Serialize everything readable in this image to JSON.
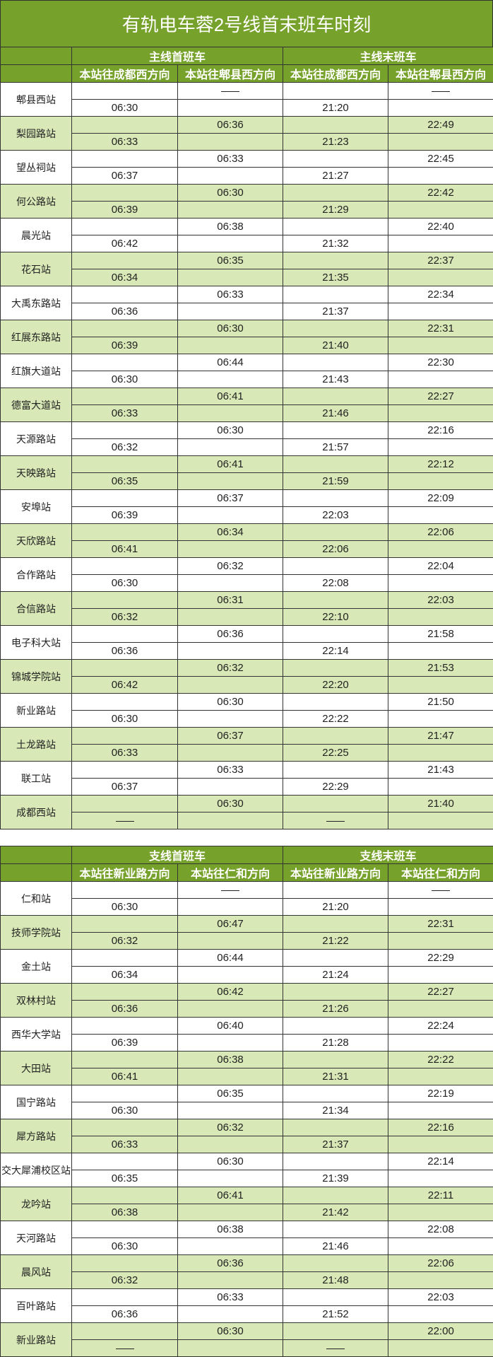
{
  "title": "有轨电车蓉2号线首末班车时刻",
  "main": {
    "first_header": "主线首班车",
    "last_header": "主线末班车",
    "dir_a": "本站往成都西方向",
    "dir_b": "本站往郫县西方向",
    "stations": [
      {
        "name": "郫县西站",
        "first_a": "06:30",
        "first_b": "—",
        "last_a": "21:20",
        "last_b": "—"
      },
      {
        "name": "梨园路站",
        "first_a": "06:33",
        "first_b": "06:36",
        "last_a": "21:23",
        "last_b": "22:49"
      },
      {
        "name": "望丛祠站",
        "first_a": "06:37",
        "first_b": "06:33",
        "last_a": "21:27",
        "last_b": "22:45"
      },
      {
        "name": "何公路站",
        "first_a": "06:39",
        "first_b": "06:30",
        "last_a": "21:29",
        "last_b": "22:42"
      },
      {
        "name": "晨光站",
        "first_a": "06:42",
        "first_b": "06:38",
        "last_a": "21:32",
        "last_b": "22:40"
      },
      {
        "name": "花石站",
        "first_a": "06:34",
        "first_b": "06:35",
        "last_a": "21:35",
        "last_b": "22:37"
      },
      {
        "name": "大禹东路站",
        "first_a": "06:36",
        "first_b": "06:33",
        "last_a": "21:37",
        "last_b": "22:34"
      },
      {
        "name": "红展东路站",
        "first_a": "06:39",
        "first_b": "06:30",
        "last_a": "21:40",
        "last_b": "22:31"
      },
      {
        "name": "红旗大道站",
        "first_a": "06:30",
        "first_b": "06:44",
        "last_a": "21:43",
        "last_b": "22:30"
      },
      {
        "name": "德富大道站",
        "first_a": "06:33",
        "first_b": "06:41",
        "last_a": "21:46",
        "last_b": "22:27"
      },
      {
        "name": "天源路站",
        "first_a": "06:32",
        "first_b": "06:30",
        "last_a": "21:57",
        "last_b": "22:16"
      },
      {
        "name": "天映路站",
        "first_a": "06:35",
        "first_b": "06:41",
        "last_a": "21:59",
        "last_b": "22:12"
      },
      {
        "name": "安埠站",
        "first_a": "06:39",
        "first_b": "06:37",
        "last_a": "22:03",
        "last_b": "22:09"
      },
      {
        "name": "天欣路站",
        "first_a": "06:41",
        "first_b": "06:34",
        "last_a": "22:06",
        "last_b": "22:06"
      },
      {
        "name": "合作路站",
        "first_a": "06:30",
        "first_b": "06:32",
        "last_a": "22:08",
        "last_b": "22:04"
      },
      {
        "name": "合信路站",
        "first_a": "06:32",
        "first_b": "06:31",
        "last_a": "22:10",
        "last_b": "22:03"
      },
      {
        "name": "电子科大站",
        "first_a": "06:36",
        "first_b": "06:36",
        "last_a": "22:14",
        "last_b": "21:58"
      },
      {
        "name": "锦城学院站",
        "first_a": "06:42",
        "first_b": "06:32",
        "last_a": "22:20",
        "last_b": "21:53"
      },
      {
        "name": "新业路站",
        "first_a": "06:30",
        "first_b": "06:30",
        "last_a": "22:22",
        "last_b": "21:50"
      },
      {
        "name": "土龙路站",
        "first_a": "06:33",
        "first_b": "06:37",
        "last_a": "22:25",
        "last_b": "21:47"
      },
      {
        "name": "联工站",
        "first_a": "06:37",
        "first_b": "06:33",
        "last_a": "22:29",
        "last_b": "21:43"
      },
      {
        "name": "成都西站",
        "first_a": "—",
        "first_b": "06:30",
        "last_a": "—",
        "last_b": "21:40"
      }
    ]
  },
  "branch": {
    "first_header": "支线首班车",
    "last_header": "支线末班车",
    "dir_a": "本站往新业路方向",
    "dir_b": "本站往仁和方向",
    "stations": [
      {
        "name": "仁和站",
        "first_a": "06:30",
        "first_b": "—",
        "last_a": "21:20",
        "last_b": "—"
      },
      {
        "name": "技师学院站",
        "first_a": "06:32",
        "first_b": "06:47",
        "last_a": "21:22",
        "last_b": "22:31"
      },
      {
        "name": "金土站",
        "first_a": "06:34",
        "first_b": "06:44",
        "last_a": "21:24",
        "last_b": "22:29"
      },
      {
        "name": "双林村站",
        "first_a": "06:36",
        "first_b": "06:42",
        "last_a": "21:26",
        "last_b": "22:27"
      },
      {
        "name": "西华大学站",
        "first_a": "06:39",
        "first_b": "06:40",
        "last_a": "21:28",
        "last_b": "22:24"
      },
      {
        "name": "大田站",
        "first_a": "06:41",
        "first_b": "06:38",
        "last_a": "21:31",
        "last_b": "22:22"
      },
      {
        "name": "国宁路站",
        "first_a": "06:30",
        "first_b": "06:35",
        "last_a": "21:34",
        "last_b": "22:19"
      },
      {
        "name": "犀方路站",
        "first_a": "06:33",
        "first_b": "06:32",
        "last_a": "21:37",
        "last_b": "22:16"
      },
      {
        "name": "交大犀浦校区站",
        "first_a": "06:35",
        "first_b": "06:30",
        "last_a": "21:39",
        "last_b": "22:14"
      },
      {
        "name": "龙吟站",
        "first_a": "06:38",
        "first_b": "06:41",
        "last_a": "21:42",
        "last_b": "22:11"
      },
      {
        "name": "天河路站",
        "first_a": "06:30",
        "first_b": "06:38",
        "last_a": "21:46",
        "last_b": "22:08"
      },
      {
        "name": "晨风站",
        "first_a": "06:32",
        "first_b": "06:36",
        "last_a": "21:48",
        "last_b": "22:06"
      },
      {
        "name": "百叶路站",
        "first_a": "06:36",
        "first_b": "06:33",
        "last_a": "21:52",
        "last_b": "22:03"
      },
      {
        "name": "新业路站",
        "first_a": "—",
        "first_b": "06:30",
        "last_a": "—",
        "last_b": "22:00"
      }
    ]
  },
  "colors": {
    "header_green": "#76a12b",
    "alt_row_green": "#d8e8b6",
    "text": "#222222"
  }
}
